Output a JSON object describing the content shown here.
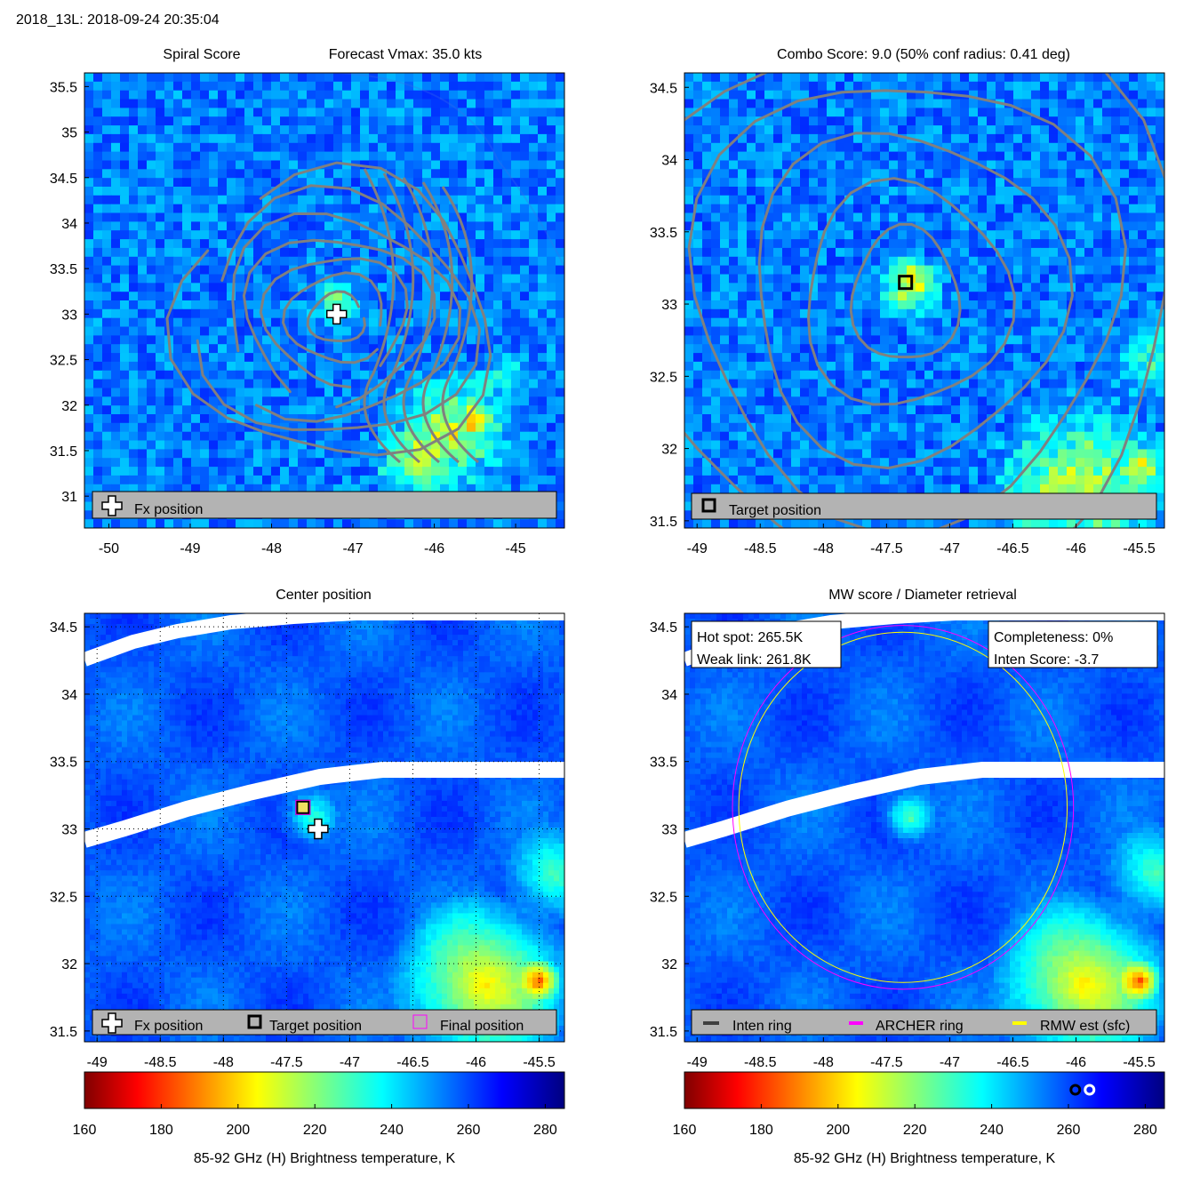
{
  "header": {
    "storm_time": "2018_13L: 2018-09-24 20:35:04"
  },
  "colors": {
    "contour": "#808080",
    "legend_bg": "#b3b3b3",
    "archer_ring": "#ff00ff",
    "rmw_ring": "#ffff00",
    "inten_ring": "#404040"
  },
  "panels": {
    "spiral": {
      "title_left": "Spiral Score",
      "title_right": "Forecast Vmax: 35.0 kts",
      "legend": {
        "fx_label": "Fx position"
      }
    },
    "combo": {
      "title": "Combo Score: 9.0  (50% conf radius: 0.41 deg)",
      "legend": {
        "target_label": "Target position"
      }
    },
    "center": {
      "title": "Center position",
      "legend": {
        "fx_label": "Fx position",
        "target_label": "Target position",
        "final_label": "Final position"
      }
    },
    "mw": {
      "title": "MW score / Diameter retrieval",
      "info_left": {
        "hot_spot": "Hot spot: 265.5K",
        "weak_link": "Weak link: 261.8K"
      },
      "info_right": {
        "completeness": "Completeness: 0%",
        "inten_score": "Inten Score: -3.7"
      },
      "legend": {
        "inten_label": "Inten ring",
        "archer_label": "ARCHER ring",
        "rmw_label": "RMW est (sfc)"
      }
    }
  },
  "chart_data": [
    {
      "type": "heatmap",
      "panel": "spiral",
      "title": "Spiral Score  Forecast Vmax: 35.0 kts",
      "xlim": [
        -50.3,
        -44.4
      ],
      "ylim": [
        30.65,
        35.65
      ],
      "x_ticks": [
        -50,
        -49,
        -48,
        -47,
        -46,
        -45
      ],
      "y_ticks": [
        31,
        31.5,
        32,
        32.5,
        33,
        33.5,
        34,
        34.5,
        35,
        35.5
      ],
      "markers": [
        {
          "type": "fx_position",
          "lon": -47.2,
          "lat": 33.0
        }
      ],
      "legend": [
        "Fx position"
      ]
    },
    {
      "type": "heatmap",
      "panel": "combo",
      "title": "Combo Score: 9.0  (50% conf radius: 0.41 deg)",
      "xlim": [
        -49.1,
        -45.3
      ],
      "ylim": [
        31.45,
        34.6
      ],
      "x_ticks": [
        -49,
        -48.5,
        -48,
        -47.5,
        -47,
        -46.5,
        -46,
        -45.5
      ],
      "y_ticks": [
        31.5,
        32,
        32.5,
        33,
        33.5,
        34,
        34.5
      ],
      "markers": [
        {
          "type": "target_position",
          "lon": -47.35,
          "lat": 33.15
        }
      ],
      "legend": [
        "Target position"
      ]
    },
    {
      "type": "heatmap",
      "panel": "center",
      "title": "Center position",
      "xlim": [
        -49.1,
        -45.3
      ],
      "ylim": [
        31.42,
        34.6
      ],
      "x_ticks": [
        -49,
        -48.5,
        -48,
        -47.5,
        -47,
        -46.5,
        -46,
        -45.5
      ],
      "y_ticks": [
        31.5,
        32,
        32.5,
        33,
        33.5,
        34,
        34.5
      ],
      "markers": [
        {
          "type": "fx_position",
          "lon": -47.25,
          "lat": 33.0
        },
        {
          "type": "target_position",
          "lon": -47.37,
          "lat": 33.16
        },
        {
          "type": "final_position",
          "lon": -47.37,
          "lat": 33.16
        }
      ],
      "legend": [
        "Fx position",
        "Target position",
        "Final position"
      ],
      "colorbar": {
        "label": "85-92 GHz (H) Brightness temperature, K",
        "range": [
          160,
          285
        ],
        "ticks": [
          160,
          180,
          200,
          220,
          240,
          260,
          280
        ]
      }
    },
    {
      "type": "heatmap",
      "panel": "mw",
      "title": "MW score / Diameter retrieval",
      "xlim": [
        -49.1,
        -45.3
      ],
      "ylim": [
        31.42,
        34.6
      ],
      "x_ticks": [
        -49,
        -48.5,
        -48,
        -47.5,
        -47,
        -46.5,
        -46,
        -45.5
      ],
      "y_ticks": [
        31.5,
        32,
        32.5,
        33,
        33.5,
        34,
        34.5
      ],
      "rings": [
        {
          "type": "archer_ring",
          "lon": -47.37,
          "lat": 33.16,
          "radius_deg": 1.35
        },
        {
          "type": "rmw_est",
          "lon": -47.37,
          "lat": 33.16,
          "radius_deg": 1.3
        }
      ],
      "legend": [
        "Inten ring",
        "ARCHER ring",
        "RMW est (sfc)"
      ],
      "colorbar": {
        "label": "85-92 GHz (H) Brightness temperature, K",
        "range": [
          160,
          285
        ],
        "ticks": [
          160,
          180,
          200,
          220,
          240,
          260,
          280
        ],
        "markers": [
          {
            "name": "weak_link",
            "value": 261.8
          },
          {
            "name": "hot_spot",
            "value": 265.5
          }
        ]
      }
    }
  ]
}
